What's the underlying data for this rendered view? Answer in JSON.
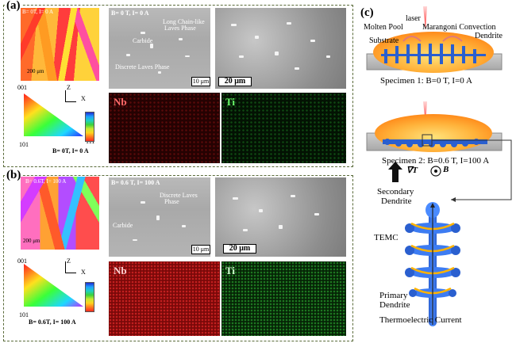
{
  "panel_a": {
    "label": "(a)",
    "ebsd_label": "B= 0T, I= 0 A",
    "ebsd_scale": "200 μm",
    "ipf": {
      "t001": "001",
      "t101": "101",
      "t111": "111",
      "axis_z": "Z",
      "axis_x": "X",
      "caption": "B= 0T, I= 0 A"
    },
    "sem_label": "B= 0 T, I= 0 A",
    "annot_chain": "Long Chain-like",
    "annot_chain2": "Laves Phase",
    "annot_carbide": "Carbide",
    "annot_discrete": "Discrete Laves Phase",
    "scale_10": "10 μm",
    "scale_20": "20 μm",
    "map_nb": "Nb",
    "map_ti": "Ti"
  },
  "panel_b": {
    "label": "(b)",
    "ebsd_label": "B= 0.6T, I= 100 A",
    "ebsd_scale": "200 μm",
    "ipf": {
      "t001": "001",
      "t101": "101",
      "t111": "111",
      "axis_z": "Z",
      "axis_x": "X",
      "caption": "B= 0.6T, I= 100 A"
    },
    "sem_label": "B= 0.6 T, I= 100 A",
    "annot_discrete": "Discrete Laves",
    "annot_discrete2": "Phase",
    "annot_carbide": "Carbide",
    "scale_10": "10 μm",
    "scale_20": "20 μm",
    "map_nb": "Nb",
    "map_ti": "Ti"
  },
  "panel_c": {
    "label": "(c)",
    "laser": "laser",
    "marangoni": "Marangoni Convection",
    "molten_pool": "Molten Pool",
    "dendrite": "Dendrite",
    "substrate": "Substrate",
    "specimen1": "Specimen 1: B=0 T, I=0 A",
    "specimen2": "Specimen 2: B=0.6 T, I=100 A",
    "grad_label": "∇T",
    "b_label": "B",
    "secondary": "Secondary",
    "secondary2": "Dendrite",
    "temc": "TEMC",
    "primary": "Primary",
    "primary2": "Dendrite",
    "current": "Thermoelectric Current"
  }
}
